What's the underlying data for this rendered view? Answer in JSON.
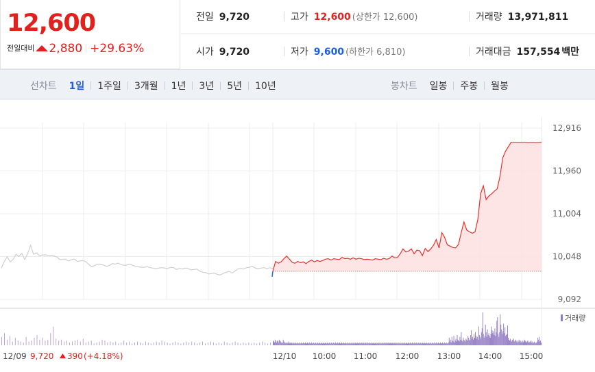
{
  "quote": {
    "price": "12,600",
    "change_label": "전일대비",
    "change_value": "2,880",
    "change_percent": "+29.63%",
    "direction": "up",
    "color_up": "#e0211d",
    "color_down": "#1a60e0"
  },
  "stats": {
    "prev_close_label": "전일",
    "prev_close": "9,720",
    "high_label": "고가",
    "high": "12,600",
    "upper_limit": "(상한가 12,600)",
    "volume_label": "거래량",
    "volume": "13,971,811",
    "open_label": "시가",
    "open": "9,720",
    "low_label": "저가",
    "low": "9,600",
    "lower_limit": "(하한가 6,810)",
    "value_label": "거래대금",
    "value": "157,554",
    "value_unit": "백만"
  },
  "toolbar": {
    "line_label": "선차트",
    "line_periods": [
      "1일",
      "1주일",
      "3개월",
      "1년",
      "3년",
      "5년",
      "10년"
    ],
    "line_active": "1일",
    "candle_label": "봉차트",
    "candle_periods": [
      "일봉",
      "주봉",
      "월봉"
    ]
  },
  "chart_data": {
    "type": "line",
    "title": "",
    "ylim": [
      9092,
      12916
    ],
    "y_ticks": [
      "12,916",
      "11,960",
      "11,004",
      "10,048",
      "9,092"
    ],
    "x_ticks": [
      "12/10",
      "10:00",
      "11:00",
      "12:00",
      "13:00",
      "14:00",
      "15:00"
    ],
    "reference_price": 9720,
    "grid": true,
    "series": [
      {
        "name": "",
        "color": "#cfcfcf",
        "values": [
          9790,
          9940,
          10040,
          9930,
          9980,
          10100,
          10050,
          10120,
          9980,
          10110,
          10300,
          10100,
          10130,
          10070,
          10080,
          10090,
          10070,
          10080,
          10060,
          10040,
          9980,
          9990,
          9990,
          9950,
          9980,
          9990,
          9940,
          9950,
          9960,
          9930,
          9870,
          9820,
          9850,
          9880,
          9870,
          9860,
          9830,
          9850,
          9890,
          9880,
          9900,
          9870,
          9850,
          9860,
          9880,
          9850,
          9830,
          9820,
          9810,
          9810,
          9820,
          9800,
          9790,
          9780,
          9790,
          9800,
          9790,
          9780,
          9810,
          9800,
          9760,
          9780,
          9770,
          9790,
          9780,
          9750,
          9760,
          9770,
          9720,
          9700,
          9690,
          9660,
          9670,
          9680,
          9650,
          9640,
          9670,
          9700,
          9720,
          9680,
          9720,
          9770,
          9780,
          9770,
          9800,
          9810,
          9830,
          9790,
          9780,
          9790,
          9800,
          9780,
          9800,
          9780
        ]
      },
      {
        "name": "",
        "color": "#e8302a",
        "values": [
          9720,
          9940,
          9900,
          9930,
          10000,
          10060,
          9990,
          9920,
          9900,
          9940,
          9910,
          9930,
          9890,
          9940,
          9970,
          9930,
          9960,
          9940,
          9960,
          9990,
          10000,
          9970,
          10000,
          9990,
          9980,
          10030,
          10000,
          10010,
          9990,
          10020,
          9990,
          10010,
          10000,
          9980,
          9990,
          9980,
          9970,
          10000,
          9990,
          9980,
          10010,
          9990,
          10000,
          10060,
          10020,
          10030,
          10110,
          10220,
          10150,
          10170,
          10220,
          10110,
          10190,
          10180,
          10070,
          10230,
          10160,
          10220,
          10300,
          10430,
          10240,
          10580,
          10480,
          10310,
          10280,
          10250,
          10240,
          10320,
          10580,
          10820,
          10640,
          10600,
          10570,
          10600,
          10880,
          11450,
          11630,
          11320,
          11400,
          11450,
          11510,
          11560,
          11840,
          12250,
          12400,
          12500,
          12600,
          12600,
          12600,
          12600,
          12600,
          12600,
          12590,
          12600,
          12600,
          12590,
          12600,
          12600
        ]
      }
    ],
    "volume": {
      "label": "거래량",
      "color": "#b9a4d6",
      "prev_bars": [
        9,
        13,
        6,
        10,
        4,
        8,
        5,
        4,
        3,
        9,
        4,
        5,
        8,
        11,
        6,
        8,
        5,
        6,
        13,
        20,
        7,
        5,
        6,
        4,
        5,
        3,
        4,
        5,
        6,
        4,
        7,
        3,
        4,
        5,
        2,
        3,
        4,
        6,
        5,
        3,
        4,
        3,
        4,
        2,
        3,
        5,
        3,
        4,
        2,
        3,
        4,
        3,
        2,
        4,
        3,
        2,
        3,
        4,
        3,
        5,
        4,
        3,
        2,
        3,
        4,
        3,
        2,
        3,
        4,
        3,
        4,
        3,
        2,
        3,
        4,
        2,
        3,
        4,
        3,
        2,
        3,
        2,
        4,
        3,
        2,
        3,
        4,
        3,
        2,
        3,
        2,
        3,
        2,
        3,
        2,
        3,
        4,
        3,
        2,
        3
      ],
      "today_bars": [
        4,
        5,
        3,
        6,
        4,
        3,
        5,
        4,
        3,
        6,
        5,
        4,
        3,
        2,
        3,
        6,
        4,
        3,
        2,
        3,
        2,
        3,
        2,
        4,
        2,
        3,
        2,
        3,
        2,
        2,
        3,
        2,
        2,
        3,
        2,
        2,
        3,
        2,
        2,
        3,
        2,
        2,
        3,
        2,
        2,
        3,
        2,
        2,
        3,
        2,
        2,
        3,
        2,
        2,
        3,
        2,
        2,
        3,
        2,
        2,
        3,
        2,
        2,
        3,
        2,
        2,
        3,
        2,
        2,
        3,
        2,
        2,
        3,
        2,
        2,
        3,
        2,
        2,
        3,
        2,
        2,
        3,
        2,
        2,
        3,
        2,
        2,
        3,
        2,
        2,
        3,
        2,
        2,
        3,
        2,
        2,
        3,
        2,
        2,
        3,
        2,
        2,
        3,
        2,
        2,
        3,
        2,
        2,
        3,
        2,
        2,
        3,
        2,
        2,
        3,
        2,
        2,
        3,
        2,
        2,
        3,
        2,
        2,
        3,
        2,
        2,
        3,
        2,
        2,
        3,
        2,
        2,
        3,
        2,
        2,
        3,
        2,
        2,
        3,
        2,
        2,
        3,
        2,
        2,
        3,
        2,
        2,
        3,
        2,
        2,
        3,
        2,
        2,
        3,
        2,
        2,
        3,
        2,
        2,
        3,
        2,
        2,
        3,
        2,
        2,
        3,
        2,
        2,
        3,
        2,
        2,
        3,
        2,
        2,
        3,
        2,
        2,
        3,
        2,
        2,
        3,
        2,
        2,
        3,
        2,
        2,
        3,
        2,
        2,
        3,
        2,
        2,
        3,
        2,
        2,
        3,
        2,
        2,
        3,
        2,
        2,
        3,
        2,
        2,
        3,
        2,
        2,
        3,
        2,
        2,
        3,
        2,
        2,
        3,
        2,
        2,
        3,
        2,
        2,
        3,
        2,
        2,
        3,
        2,
        2,
        3,
        2,
        2,
        3,
        2,
        2,
        3,
        2,
        2,
        3,
        2,
        2,
        3,
        2,
        2,
        3,
        2,
        2,
        3,
        2,
        2,
        3,
        2,
        2,
        3,
        2,
        2,
        3,
        2,
        2,
        3,
        2,
        2,
        3,
        2,
        2,
        3,
        8,
        4,
        6,
        3,
        9,
        5,
        4,
        10,
        3,
        5,
        7,
        4,
        11,
        6,
        5,
        4,
        9,
        6,
        14,
        5,
        4,
        8,
        6,
        5,
        4,
        7,
        6,
        5,
        10,
        8,
        6,
        5,
        11,
        16,
        7,
        9,
        6,
        12,
        8,
        14,
        10,
        7,
        9,
        6,
        20,
        11,
        9,
        7,
        14,
        18,
        35,
        12,
        8,
        10,
        22,
        14,
        9,
        17,
        11,
        13,
        10,
        8,
        12,
        20,
        16,
        13,
        15,
        11,
        18,
        10,
        14,
        26,
        30,
        12,
        9,
        14,
        33,
        22,
        17,
        12,
        15,
        23,
        13,
        19,
        10,
        11,
        12,
        21,
        8,
        6,
        5,
        7,
        5,
        4,
        6,
        5,
        7,
        4,
        5,
        6,
        4,
        5,
        3,
        4,
        6,
        4,
        5,
        3,
        4,
        5,
        3,
        4,
        6,
        5,
        4,
        3,
        4,
        5,
        3,
        4,
        3,
        4,
        5,
        3,
        4,
        2,
        3,
        4,
        3,
        2,
        3,
        4,
        8,
        6,
        9,
        4,
        5,
        3
      ]
    },
    "prev_day_footer": {
      "date": "12/09",
      "close": "9,720",
      "change": "390",
      "percent": "(+4.18%)"
    }
  }
}
